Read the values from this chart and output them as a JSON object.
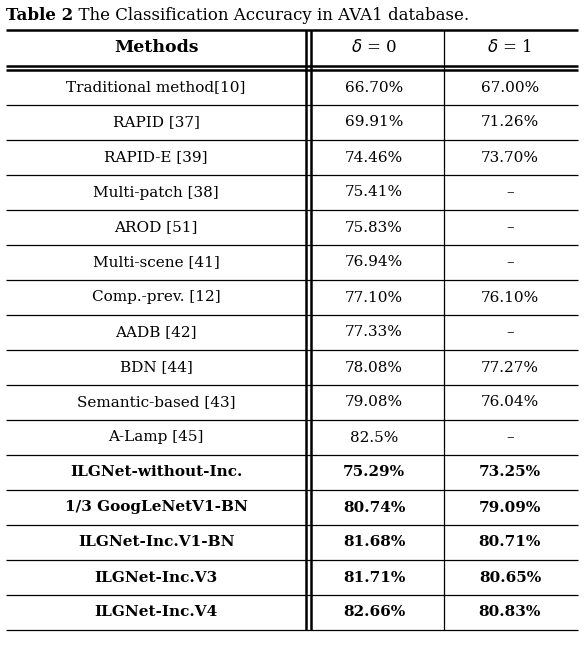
{
  "title_bold": "Table 2",
  "title_rest": "  The Classification Accuracy in AVA1 database.",
  "col_headers": [
    "Methods",
    "δ = 0",
    "δ = 1"
  ],
  "rows": [
    [
      "Traditional method[10]",
      "66.70%",
      "67.00%"
    ],
    [
      "RAPID [37]",
      "69.91%",
      "71.26%"
    ],
    [
      "RAPID-E [39]",
      "74.46%",
      "73.70%"
    ],
    [
      "Multi-patch [38]",
      "75.41%",
      "–"
    ],
    [
      "AROD [51]",
      "75.83%",
      "–"
    ],
    [
      "Multi-scene [41]",
      "76.94%",
      "–"
    ],
    [
      "Comp.-prev. [12]",
      "77.10%",
      "76.10%"
    ],
    [
      "AADB [42]",
      "77.33%",
      "–"
    ],
    [
      "BDN [44]",
      "78.08%",
      "77.27%"
    ],
    [
      "Semantic-based [43]",
      "79.08%",
      "76.04%"
    ],
    [
      "A-Lamp [45]",
      "82.5%",
      "–"
    ],
    [
      "ILGNet-without-Inc.",
      "75.29%",
      "73.25%"
    ],
    [
      "1/3 GoogLeNetV1-BN",
      "80.74%",
      "79.09%"
    ],
    [
      "ILGNet-Inc.V1-BN",
      "81.68%",
      "80.71%"
    ],
    [
      "ILGNet-Inc.V3",
      "81.71%",
      "80.65%"
    ],
    [
      "ILGNet-Inc.V4",
      "82.66%",
      "80.83%"
    ]
  ],
  "bold_rows": [
    11,
    12,
    13,
    14,
    15
  ],
  "figsize": [
    5.84,
    6.56
  ],
  "dpi": 100,
  "font_size": 11.0,
  "title_font_size": 12.0
}
